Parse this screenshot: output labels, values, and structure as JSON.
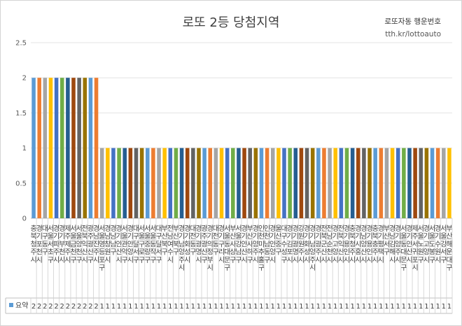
{
  "brand": {
    "name": "로또자동 행운번호",
    "url": "tth.kr/lottoauto"
  },
  "chart_data": {
    "type": "bar",
    "title": "로또 2등 당첨지역",
    "xlabel": "",
    "ylabel": "",
    "ylim": [
      0,
      2.5
    ],
    "yticks": [
      0,
      0.5,
      1,
      1.5,
      2,
      2.5
    ],
    "grid": true,
    "legend": "bottom-left (data table)",
    "series": [
      {
        "name": "요약",
        "values": [
          2,
          2,
          2,
          2,
          2,
          2,
          2,
          2,
          2,
          2,
          2,
          2,
          1,
          1,
          1,
          1,
          1,
          1,
          1,
          1,
          1,
          1,
          1,
          1,
          1,
          1,
          1,
          1,
          1,
          1,
          1,
          1,
          1,
          1,
          1,
          1,
          1,
          1,
          1,
          1,
          1,
          1,
          1,
          1,
          1,
          1,
          1,
          1,
          1,
          1,
          1,
          1,
          1,
          1,
          1,
          1,
          1,
          1,
          1,
          1,
          1,
          1,
          1,
          1,
          1,
          1,
          1,
          1,
          1,
          1,
          1,
          1,
          1,
          1
        ]
      }
    ],
    "categories": [
      "충북 청주시",
      "경기 포천시",
      "대구 동구",
      "서울 서초구",
      "경기 파주시",
      "경기 부천시",
      "제주 제주시",
      "서울 금천구",
      "서울 양천구",
      "전북 익산시",
      "광주 광산구",
      "경남 진주시",
      "서울 영등포구",
      "경남 창원시",
      "경남 남구",
      "경기 안산시",
      "서울 관악구",
      "경기 안양시",
      "대구 달서구",
      "서울 구로구",
      "서울 중랑구",
      "서울 동작구",
      "대구 달서구",
      "부산 북구",
      "전남 여수시",
      "부산 북구",
      "경기 남양주시",
      "경기 화성시",
      "대전 동구",
      "경기 광명시",
      "광주 광산구",
      "경기 의정부시",
      "대전 동구",
      "경기 구리시",
      "서울 동대문구",
      "부산 사상구",
      "서울 강남구",
      "경기 안산시",
      "부산 사하구",
      "경기 양주시",
      "인천 미추홀구",
      "인천 남동구",
      "경기 안양시",
      "울산 중구",
      "대구 수성구",
      "경기 김포시",
      "경기 광명시",
      "강원 원주시",
      "경기 화성시",
      "경기 남양주시",
      "경기 광주시",
      "전북 군산시",
      "전남 순천시",
      "경기 고양시",
      "전북 익산시",
      "경기 용인시",
      "충북 청주시",
      "경기 시흥시",
      "경남 양산시",
      "경기 용인시",
      "충북 충주시",
      "경기 평택시",
      "부산 서구",
      "경남 김해시",
      "경기 양주시",
      "서울 동대문구",
      "경기 안산시",
      "제주 서귀포시",
      "서울 노원구",
      "경기 고양시",
      "서울 도봉구",
      "경기 수원시",
      "서울 강서구",
      "부산 해운대구"
    ],
    "colors": [
      "#5b9bd5",
      "#ed7d31",
      "#a5a5a5",
      "#ffc000",
      "#4472c4",
      "#70ad47",
      "#255e91",
      "#9e480e",
      "#636363",
      "#997300"
    ]
  }
}
